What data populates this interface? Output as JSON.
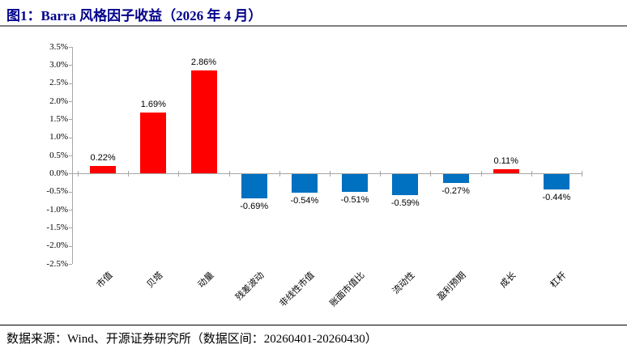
{
  "header": {
    "title": "图1：Barra 风格因子收益（2026 年 4 月）"
  },
  "footer": {
    "source": "数据来源：Wind、开源证券研究所（数据区间：20260401-20260430）"
  },
  "chart_data": {
    "type": "bar",
    "title": "图1：Barra 风格因子收益（2026 年 4 月）",
    "categories": [
      "市值",
      "贝塔",
      "动量",
      "残差波动",
      "非线性市值",
      "账面市值比",
      "流动性",
      "盈利预期",
      "成长",
      "杠杆"
    ],
    "values": [
      0.22,
      1.69,
      2.86,
      -0.69,
      -0.54,
      -0.51,
      -0.59,
      -0.27,
      0.11,
      -0.44
    ],
    "value_labels": [
      "0.22%",
      "1.69%",
      "2.86%",
      "-0.69%",
      "-0.54%",
      "-0.51%",
      "-0.59%",
      "-0.27%",
      "0.11%",
      "-0.44%"
    ],
    "y_tick_labels": [
      "3.5%",
      "3.0%",
      "2.5%",
      "2.0%",
      "1.5%",
      "1.0%",
      "0.5%",
      "0.0%",
      "-0.5%",
      "-1.0%",
      "-1.5%",
      "-2.0%",
      "-2.5%"
    ],
    "ylim": [
      -2.5,
      3.5
    ],
    "ytick_step": 0.5,
    "grid": false,
    "legend": false,
    "colors": {
      "positive": "#FF0000",
      "negative": "#0070C0",
      "axis": "#a6a6a6"
    }
  }
}
